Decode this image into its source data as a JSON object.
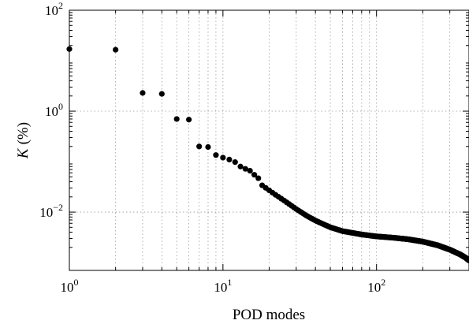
{
  "chart_data": {
    "type": "scatter",
    "title": "",
    "xlabel": "POD modes",
    "ylabel_symbol": "K",
    "ylabel_unit": "(%)",
    "x_scale": "log",
    "y_scale": "log",
    "xlim": [
      1,
      400
    ],
    "ylim": [
      0.0007,
      100
    ],
    "grid": true,
    "x_ticks": [
      {
        "value": 1,
        "base": "10",
        "exp": "0"
      },
      {
        "value": 10,
        "base": "10",
        "exp": "1"
      },
      {
        "value": 100,
        "base": "10",
        "exp": "2"
      }
    ],
    "y_ticks": [
      {
        "value": 0.01,
        "base": "10",
        "exp": "−2"
      },
      {
        "value": 1,
        "base": "10",
        "exp": "0"
      },
      {
        "value": 100,
        "base": "10",
        "exp": "2"
      }
    ],
    "marker_color": "#000000",
    "points_explicit": [
      {
        "x": 1,
        "y": 17.0
      },
      {
        "x": 2,
        "y": 16.5
      },
      {
        "x": 3,
        "y": 2.3
      },
      {
        "x": 4,
        "y": 2.2
      },
      {
        "x": 5,
        "y": 0.7
      },
      {
        "x": 6,
        "y": 0.68
      },
      {
        "x": 7,
        "y": 0.2
      },
      {
        "x": 8,
        "y": 0.195
      },
      {
        "x": 9,
        "y": 0.135
      },
      {
        "x": 10,
        "y": 0.12
      },
      {
        "x": 11,
        "y": 0.11
      },
      {
        "x": 12,
        "y": 0.098
      },
      {
        "x": 13,
        "y": 0.08
      },
      {
        "x": 14,
        "y": 0.072
      },
      {
        "x": 15,
        "y": 0.066
      },
      {
        "x": 16,
        "y": 0.055
      },
      {
        "x": 17,
        "y": 0.047
      }
    ],
    "tail_curve": {
      "x_start": 18,
      "x_end": 400,
      "knots": [
        {
          "x": 18,
          "y": 0.034
        },
        {
          "x": 20,
          "y": 0.027
        },
        {
          "x": 22,
          "y": 0.022
        },
        {
          "x": 25,
          "y": 0.017
        },
        {
          "x": 30,
          "y": 0.0115
        },
        {
          "x": 35,
          "y": 0.0085
        },
        {
          "x": 40,
          "y": 0.0068
        },
        {
          "x": 50,
          "y": 0.005
        },
        {
          "x": 60,
          "y": 0.0042
        },
        {
          "x": 80,
          "y": 0.0036
        },
        {
          "x": 100,
          "y": 0.0033
        },
        {
          "x": 130,
          "y": 0.0031
        },
        {
          "x": 160,
          "y": 0.0029
        },
        {
          "x": 200,
          "y": 0.0026
        },
        {
          "x": 250,
          "y": 0.0022
        },
        {
          "x": 300,
          "y": 0.0018
        },
        {
          "x": 350,
          "y": 0.00145
        },
        {
          "x": 380,
          "y": 0.00125
        },
        {
          "x": 400,
          "y": 0.0011
        }
      ]
    }
  }
}
